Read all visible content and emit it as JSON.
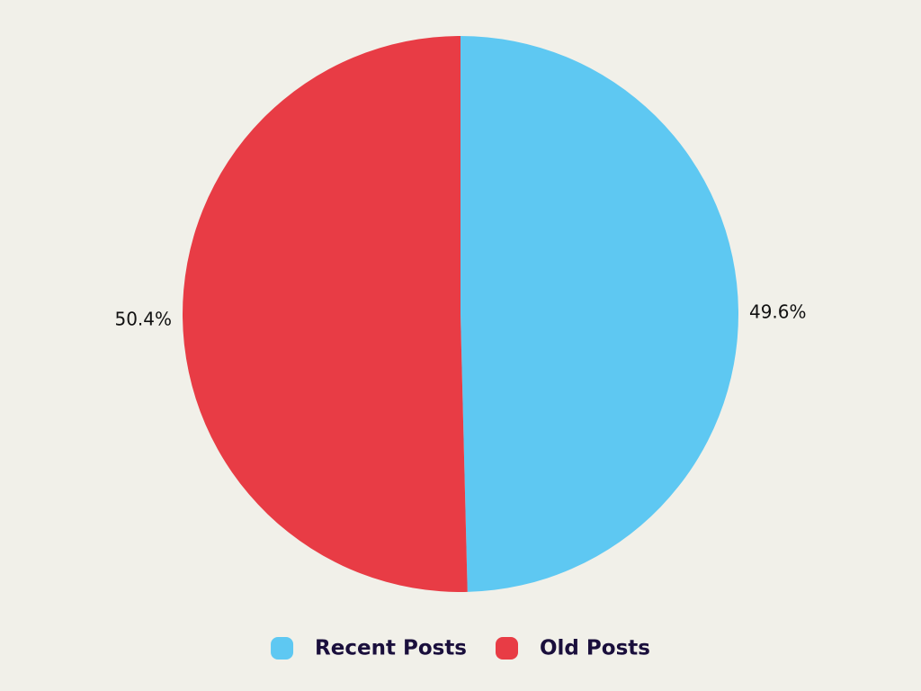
{
  "chart_data": {
    "type": "pie",
    "categories": [
      "Recent Posts",
      "Old Posts"
    ],
    "values": [
      49.6,
      50.4
    ],
    "value_labels": [
      "49.6%",
      "50.4%"
    ],
    "colors": [
      "#5ec8f2",
      "#e83c45"
    ],
    "legend": "bottom"
  }
}
